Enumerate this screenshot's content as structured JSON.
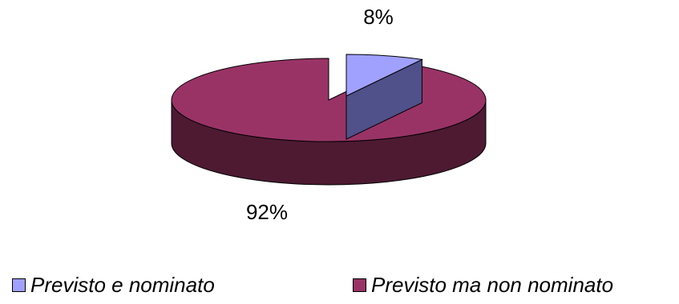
{
  "chart_data": {
    "type": "pie",
    "style": "3d",
    "categories": [
      "Previsto e nominato",
      "Previsto ma non nominato"
    ],
    "values": [
      8,
      92
    ],
    "unit": "%",
    "data_labels": [
      "8%",
      "92%"
    ],
    "colors": [
      "#a0a0ff",
      "#993366"
    ],
    "side_colors": [
      "#50508a",
      "#4d1a32"
    ],
    "exploded_slice": "Previsto e nominato",
    "legend": {
      "position": "bottom",
      "items": [
        {
          "label": "Previsto e nominato",
          "color": "#a0a0ff"
        },
        {
          "label": "Previsto ma non nominato",
          "color": "#993366"
        }
      ]
    },
    "title": ""
  }
}
